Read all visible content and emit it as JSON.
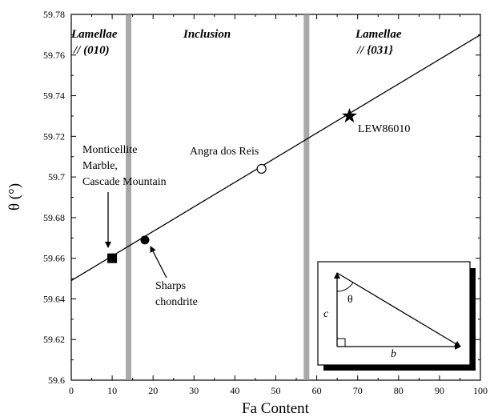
{
  "chart_data": {
    "type": "scatter",
    "title": "",
    "xlabel": "Fa Content",
    "ylabel": "θ (°)",
    "xlim": [
      0,
      100
    ],
    "ylim": [
      59.6,
      59.78
    ],
    "x_ticks": [
      "0",
      "10",
      "20",
      "30",
      "40",
      "50",
      "60",
      "70",
      "80",
      "90",
      "100"
    ],
    "y_ticks": [
      "59.6",
      "59.62",
      "59.64",
      "59.66",
      "59.68",
      "59.7",
      "59.72",
      "59.74",
      "59.76",
      "59.78"
    ],
    "trend_line": {
      "x": [
        0,
        100
      ],
      "y": [
        59.649,
        59.77
      ]
    },
    "vertical_bands": [
      14,
      57.5
    ],
    "regions": [
      {
        "lines": [
          "Lamellae",
          "// (010)"
        ]
      },
      {
        "lines": [
          "Inclusion"
        ]
      },
      {
        "lines": [
          "Lamellae",
          "// {031}"
        ]
      }
    ],
    "points": [
      {
        "x": 10,
        "y": 59.66,
        "marker": "filled-square",
        "label": [
          "Monticellite",
          "Marble,",
          "Cascade Mountain"
        ]
      },
      {
        "x": 18,
        "y": 59.669,
        "marker": "filled-circle",
        "label": [
          "Sharps",
          "chondrite"
        ]
      },
      {
        "x": 46.5,
        "y": 59.704,
        "marker": "open-circle",
        "label": [
          "Angra dos Reis"
        ]
      },
      {
        "x": 68,
        "y": 59.73,
        "marker": "star",
        "label": [
          "LEW86010"
        ]
      }
    ],
    "inset": {
      "angle_label": "θ",
      "vertical_label": "c",
      "horizontal_label": "b"
    }
  }
}
